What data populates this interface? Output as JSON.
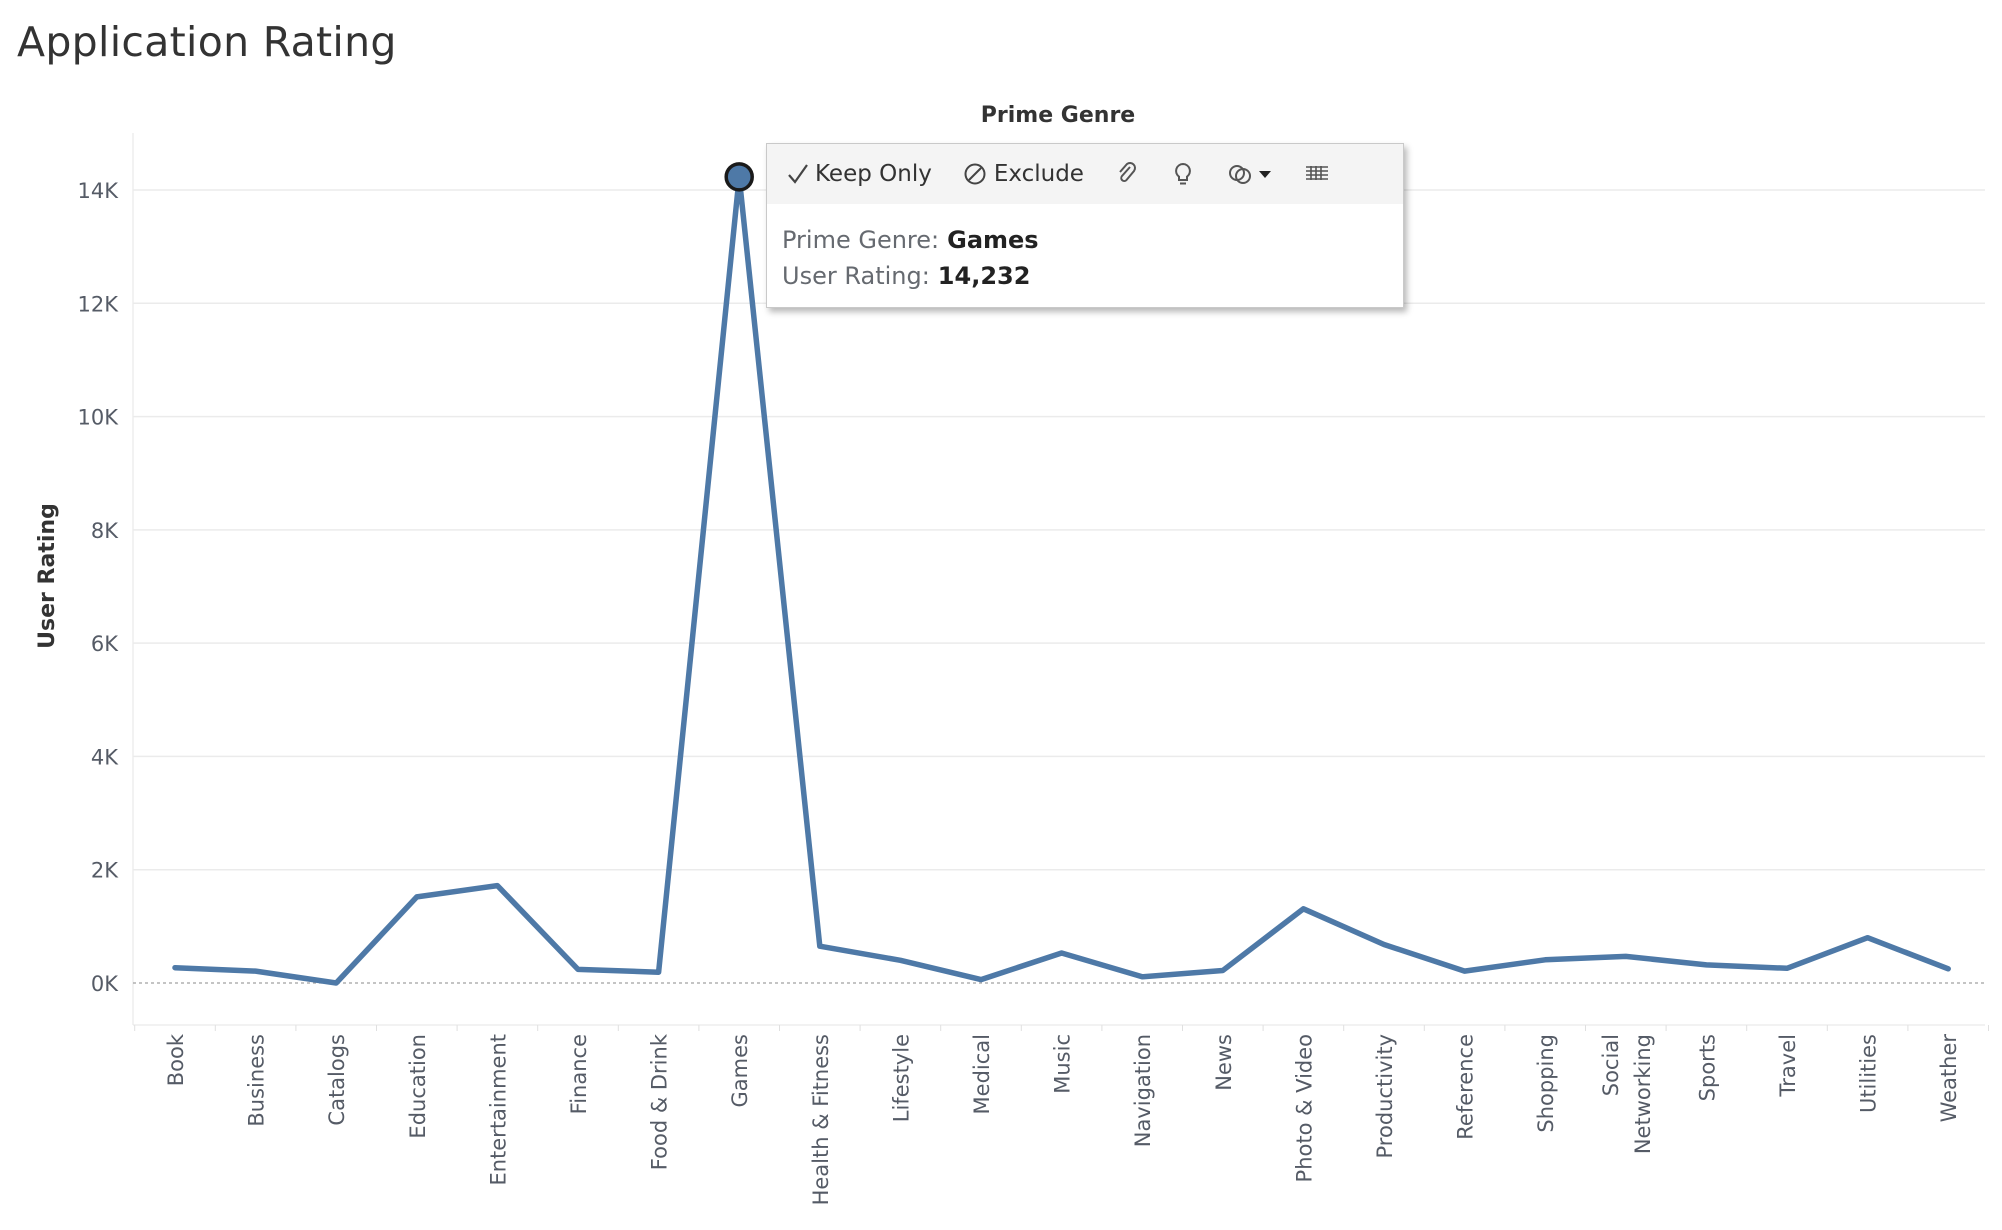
{
  "title": "Application Rating",
  "chart_data": {
    "type": "line",
    "title": "",
    "column_header": "Prime Genre",
    "xlabel": "",
    "ylabel": "User Rating",
    "ylim": [
      -800,
      15000
    ],
    "yticks": [
      0,
      2000,
      4000,
      6000,
      8000,
      10000,
      12000,
      14000
    ],
    "ytick_labels": [
      "0K",
      "2K",
      "4K",
      "6K",
      "8K",
      "10K",
      "12K",
      "14K"
    ],
    "categories": [
      "Book",
      "Business",
      "Catalogs",
      "Education",
      "Entertainment",
      "Finance",
      "Food & Drink",
      "Games",
      "Health & Fitness",
      "Lifestyle",
      "Medical",
      "Music",
      "Navigation",
      "News",
      "Photo & Video",
      "Productivity",
      "Reference",
      "Shopping",
      "Social Networking",
      "Sports",
      "Travel",
      "Utilities",
      "Weather"
    ],
    "category_display": [
      [
        "Book"
      ],
      [
        "Business"
      ],
      [
        "Catalogs"
      ],
      [
        "Education"
      ],
      [
        "Entertainment"
      ],
      [
        "Finance"
      ],
      [
        "Food & Drink"
      ],
      [
        "Games"
      ],
      [
        "Health & Fitness"
      ],
      [
        "Lifestyle"
      ],
      [
        "Medical"
      ],
      [
        "Music"
      ],
      [
        "Navigation"
      ],
      [
        "News"
      ],
      [
        "Photo & Video"
      ],
      [
        "Productivity"
      ],
      [
        "Reference"
      ],
      [
        "Shopping"
      ],
      [
        "Social",
        "Networking"
      ],
      [
        "Sports"
      ],
      [
        "Travel"
      ],
      [
        "Utilities"
      ],
      [
        "Weather"
      ]
    ],
    "values": [
      270,
      210,
      0,
      1520,
      1720,
      240,
      190,
      14232,
      650,
      400,
      60,
      530,
      110,
      220,
      1310,
      680,
      210,
      410,
      470,
      320,
      260,
      800,
      250
    ],
    "grid": true,
    "highlighted_category": "Games",
    "colors": {
      "line": "#4e79a7",
      "marker_fill": "#4e79a7",
      "marker_stroke": "#1a1a1a",
      "grid": "#ebebeb",
      "zero_line": "#a0a0a0"
    }
  },
  "tooltip": {
    "keep_only": "Keep Only",
    "exclude": "Exclude",
    "rows": [
      {
        "label": "Prime Genre:",
        "value": "Games"
      },
      {
        "label": "User Rating:",
        "value": "14,232"
      }
    ],
    "icons": {
      "keep": "check-icon",
      "exclude": "exclude-icon",
      "group": "paperclip-icon",
      "explain": "lightbulb-icon",
      "sets": "sets-icon",
      "data": "view-data-icon"
    }
  }
}
